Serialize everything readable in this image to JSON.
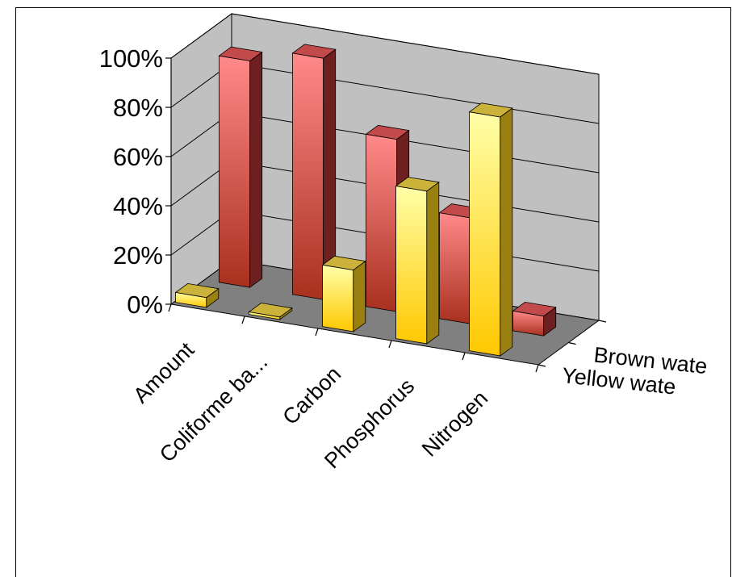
{
  "chart_data": {
    "type": "bar",
    "title": "",
    "categories": [
      "Amount",
      "Coliforme ba...",
      "Carbon",
      "Phosphorus",
      "Nitrogen"
    ],
    "y_ticks": [
      "0%",
      "20%",
      "40%",
      "60%",
      "80%",
      "100%"
    ],
    "ylim": [
      0,
      100
    ],
    "y_unit": "%",
    "series": [
      {
        "name": "Brown wate",
        "values": [
          92,
          98,
          70,
          43,
          8
        ]
      },
      {
        "name": "Yellow wate",
        "values": [
          4,
          1,
          25,
          62,
          97
        ]
      }
    ],
    "colors": {
      "brown_front_top": "#ff8a8a",
      "brown_front_bottom": "#a8301e",
      "brown_side": "#6e2020",
      "brown_top": "#c24a4a",
      "yellow_front_top": "#ffffa8",
      "yellow_front_bottom": "#ffc800",
      "yellow_side": "#9a8010",
      "yellow_top": "#cbb23a",
      "back_wall": "#c0c0c0",
      "floor": "#808080"
    }
  }
}
